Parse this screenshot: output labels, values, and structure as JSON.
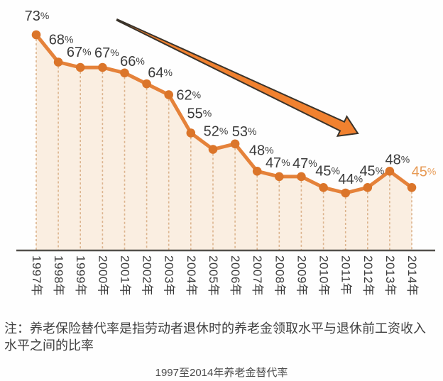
{
  "chart_data": {
    "type": "line",
    "title": "1997至2014年养老金替代率",
    "series_name": "养老金替代率",
    "categories": [
      "1997年",
      "1998年",
      "1999年",
      "2000年",
      "2001年",
      "2002年",
      "2003年",
      "2004年",
      "2005年",
      "2006年",
      "2007年",
      "2008年",
      "2009年",
      "2010年",
      "2011年",
      "2012年",
      "2013年",
      "2014年"
    ],
    "values": [
      73,
      68,
      67,
      67,
      66,
      64,
      62,
      55,
      52,
      53,
      48,
      47,
      47,
      45,
      44,
      45,
      48,
      45
    ],
    "unit": "%",
    "data_labels": [
      "73%",
      "68%",
      "67%",
      "67%",
      "66%",
      "64%",
      "62%",
      "55%",
      "52%",
      "53%",
      "48%",
      "47%",
      "47%",
      "45%",
      "44%",
      "45%",
      "48%",
      "45%"
    ],
    "ylim": [
      34,
      78
    ],
    "xlabel": "",
    "ylabel": "",
    "legend": "none",
    "grid": "dashed vertical drop lines from each point to x-axis, area under line filled",
    "annotations": [
      {
        "type": "arrow",
        "direction": "down-right",
        "meaning": "declining trend"
      }
    ],
    "colors": {
      "line": "#e5823a",
      "point": "#db752a",
      "area": "#faeee1",
      "drop_line": "#dcb48e",
      "axis": "#53504b",
      "value_label": "#3b3b3b",
      "value_label_last": "#e79a55",
      "tick_label": "#3b3b3b",
      "arrow_fill": "#f1812f",
      "arrow_outline": "#3a332a"
    }
  },
  "note": "注：养老保险替代率是指劳动者退休时的养老金领取水平与退休前工资收入水平之间的比率",
  "caption": "1997至2014年养老金替代率"
}
